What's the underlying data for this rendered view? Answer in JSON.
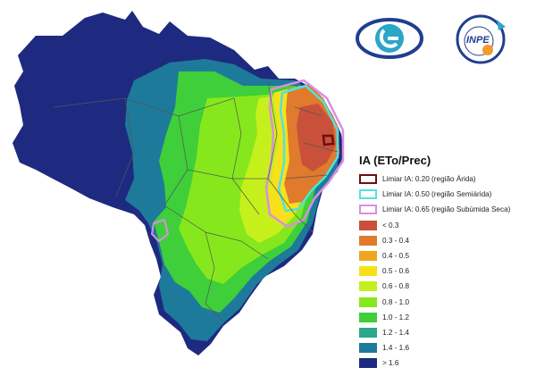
{
  "legend": {
    "title": "IA (ETo/Prec)",
    "thresholds": [
      {
        "label": "Limiar IA: 0.20 (região Árida)",
        "color": "#6b0f12"
      },
      {
        "label": "Limiar IA: 0.50 (região Semiárida)",
        "color": "#4fe3e0"
      },
      {
        "label": "Limiar IA: 0.65 (região Subúmida Seca)",
        "color": "#d98fe0"
      }
    ],
    "classes": [
      {
        "label": "< 0.3",
        "color": "#c9503a"
      },
      {
        "label": "0.3 - 0.4",
        "color": "#e07a2c"
      },
      {
        "label": "0.4 - 0.5",
        "color": "#f0a51e"
      },
      {
        "label": "0.5 - 0.6",
        "color": "#f7e11a"
      },
      {
        "label": "0.6 - 0.8",
        "color": "#c6f01c"
      },
      {
        "label": "0.8 - 1.0",
        "color": "#86e81c"
      },
      {
        "label": "1.0 - 1.2",
        "color": "#3fcf3a"
      },
      {
        "label": "1.2 - 1.4",
        "color": "#2aa889"
      },
      {
        "label": "1.4 - 1.6",
        "color": "#1e7a9a"
      },
      {
        "label": "> 1.6",
        "color": "#1e2a80"
      }
    ]
  },
  "logos": {
    "inpe_text": "INPE"
  },
  "map_colors": {
    "wet_north": "#1e2a80",
    "transition": "#1e7a9a",
    "humid_green": "#3fcf3a",
    "mid_green": "#86e81c",
    "light_green": "#c6f01c",
    "yellow": "#f7e11a",
    "semiarid": "#e07a2c",
    "arid_core": "#c9503a",
    "state_border": "#555555"
  }
}
